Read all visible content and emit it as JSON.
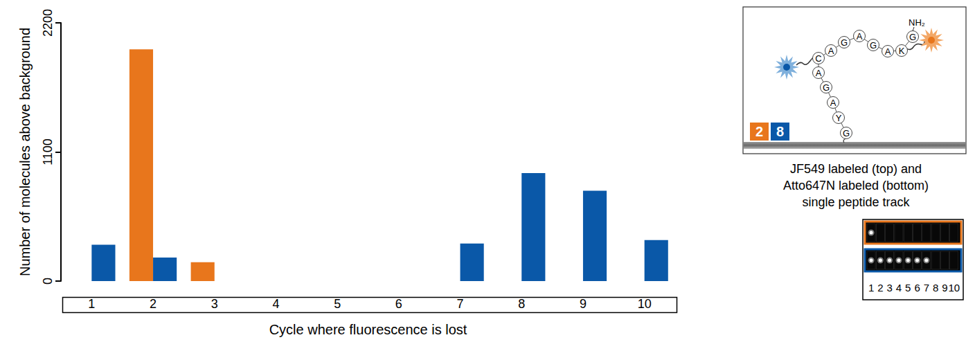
{
  "chart_data": {
    "type": "bar",
    "categories": [
      "1",
      "2",
      "3",
      "4",
      "5",
      "6",
      "7",
      "8",
      "9",
      "10"
    ],
    "series": [
      {
        "color": "#e8761c",
        "values": [
          0,
          1975,
          160,
          0,
          0,
          0,
          0,
          0,
          0,
          0
        ]
      },
      {
        "color": "#0a58a8",
        "values": [
          310,
          200,
          0,
          0,
          0,
          0,
          320,
          920,
          770,
          350
        ]
      }
    ],
    "x_label": "Cycle where fluorescence is lost",
    "y_label": "Number of molecules above background",
    "ylim": [
      0,
      2200
    ],
    "yticks": [
      0,
      1100,
      2200
    ],
    "grid": false
  },
  "diagram": {
    "peptide": {
      "residues": [
        "G",
        "Y",
        "A",
        "G",
        "A",
        "C",
        "A",
        "G",
        "A",
        "G",
        "A",
        "K",
        "G"
      ],
      "terminus": "NH₂"
    },
    "label_boxes": [
      {
        "text": "2",
        "color": "#e8761c"
      },
      {
        "text": "8",
        "color": "#0a58a8"
      }
    ],
    "caption": "JF549 labeled (top) and Atto647N labeled (bottom) single peptide track",
    "tracks": [
      {
        "color": "#e8761c",
        "spots": [
          true,
          false,
          false,
          false,
          false,
          false,
          false,
          false,
          false,
          false
        ]
      },
      {
        "color": "#0a58a8",
        "spots": [
          true,
          true,
          true,
          true,
          true,
          true,
          true,
          false,
          false,
          false
        ]
      }
    ],
    "frames": [
      "1",
      "2",
      "3",
      "4",
      "5",
      "6",
      "7",
      "8",
      "9",
      "10"
    ]
  }
}
